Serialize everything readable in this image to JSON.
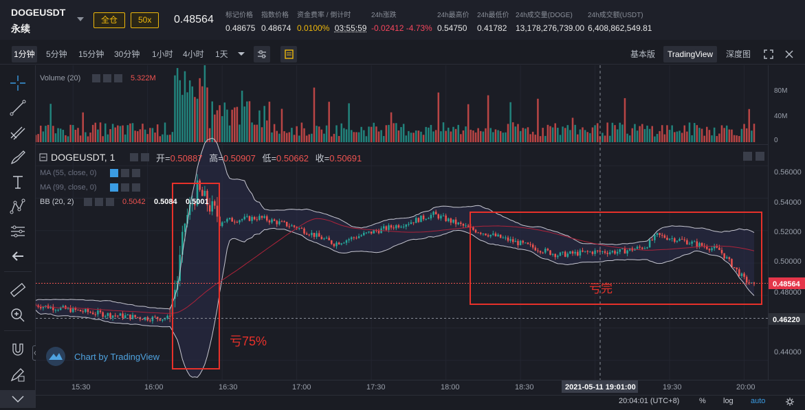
{
  "header": {
    "symbol": "DOGEUSDT",
    "contract_type": "永续",
    "margin_mode": "全仓",
    "leverage": "50x",
    "last_price": "0.48564",
    "stats": [
      {
        "label": "标记价格",
        "value": "0.48675"
      },
      {
        "label": "指数价格",
        "value": "0.48674"
      },
      {
        "label": "资金费率 / 倒计时",
        "value": "0.0100%",
        "value2": "03:55:59"
      },
      {
        "label": "24h涨跌",
        "value": "-0.02412 -4.73%"
      },
      {
        "label": "24h最高价",
        "value": "0.54750"
      },
      {
        "label": "24h最低价",
        "value": "0.41782"
      },
      {
        "label": "24h成交量(DOGE)",
        "value": "13,178,276,739.00"
      },
      {
        "label": "24h成交额(USDT)",
        "value": "6,408,862,549.81"
      }
    ]
  },
  "toolbar": {
    "timeframes": [
      "1分钟",
      "5分钟",
      "15分钟",
      "30分钟",
      "1小时",
      "4小时",
      "1天"
    ],
    "active_timeframe": "1分钟",
    "views": [
      "基本版",
      "TradingView",
      "深度图"
    ],
    "active_view": "TradingView"
  },
  "volume_pane": {
    "title": "Volume (20)",
    "value": "5.322M",
    "axis_labels": [
      "80M",
      "40M",
      "0"
    ]
  },
  "price_pane": {
    "title": "DOGEUSDT, 1",
    "open_label": "开=",
    "open": "0.50887",
    "high_label": "高=",
    "high": "0.50907",
    "low_label": "低=",
    "low": "0.50662",
    "close_label": "收=",
    "close": "0.50691",
    "indicators": [
      {
        "name": "MA (55, close, 0)"
      },
      {
        "name": "MA (99, close, 0)"
      },
      {
        "name": "BB (20, 2)",
        "v1": "0.5042",
        "v2": "0.5084",
        "v3": "0.5001"
      }
    ],
    "price_axis": [
      "0.56000",
      "0.54000",
      "0.52000",
      "0.50000",
      "0.48000",
      "0.46000",
      "0.44000"
    ],
    "last_price_tag": "0.48564",
    "low_line_tag": "0.46220",
    "annotation_left": "亏75%",
    "annotation_right": "亏完",
    "watermark": "Chart by TradingView"
  },
  "time_axis": {
    "labels": [
      "15:30",
      "16:00",
      "16:30",
      "17:00",
      "17:30",
      "18:00",
      "18:30",
      "19:00",
      "19:30",
      "20:00"
    ],
    "crosshair_label": "2021-05-11 19:01:00"
  },
  "statusbar": {
    "time": "20:04:01 (UTC+8)",
    "percent": "%",
    "log": "log",
    "auto": "auto"
  },
  "colors": {
    "up": "#26a69a",
    "down": "#ef5350",
    "annotation_box": "#e8312a",
    "bb_band": "#c8c8d2",
    "ma_line": "#b0233a"
  },
  "chart_data": {
    "type": "candlestick",
    "title": "DOGEUSDT, 1",
    "time_range": [
      "15:15",
      "20:04"
    ],
    "ylim": [
      0.428,
      0.572
    ],
    "close_path": [
      [
        "15:15",
        0.474
      ],
      [
        "15:30",
        0.471
      ],
      [
        "15:45",
        0.468
      ],
      [
        "16:00",
        0.466
      ],
      [
        "16:08",
        0.466
      ],
      [
        "16:12",
        0.49
      ],
      [
        "16:15",
        0.525
      ],
      [
        "16:20",
        0.545
      ],
      [
        "16:25",
        0.535
      ],
      [
        "16:30",
        0.526
      ],
      [
        "16:45",
        0.528
      ],
      [
        "17:00",
        0.522
      ],
      [
        "17:15",
        0.512
      ],
      [
        "17:30",
        0.519
      ],
      [
        "17:45",
        0.525
      ],
      [
        "17:55",
        0.53
      ],
      [
        "18:10",
        0.521
      ],
      [
        "18:30",
        0.512
      ],
      [
        "18:45",
        0.505
      ],
      [
        "19:00",
        0.507
      ],
      [
        "19:10",
        0.507
      ],
      [
        "19:20",
        0.51
      ],
      [
        "19:25",
        0.517
      ],
      [
        "19:35",
        0.514
      ],
      [
        "19:50",
        0.508
      ],
      [
        "20:00",
        0.49
      ],
      [
        "20:04",
        0.4856
      ]
    ],
    "volume_ylim": [
      0,
      100
    ],
    "volume_unit": "M"
  }
}
